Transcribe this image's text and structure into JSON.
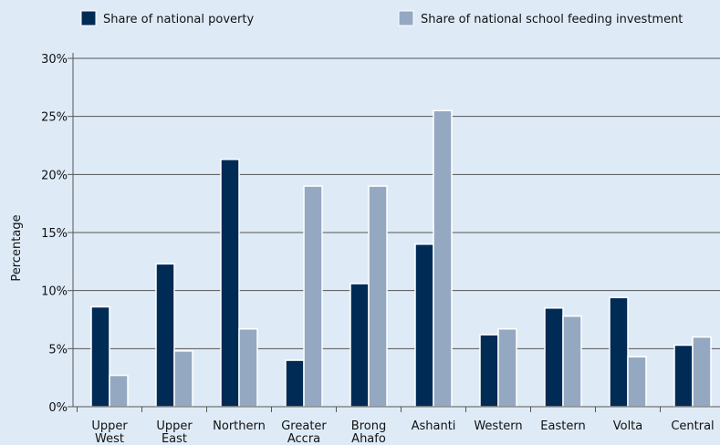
{
  "chart_data": {
    "type": "bar",
    "title": "",
    "xlabel": "",
    "ylabel": "Percentage",
    "ylim": [
      0,
      30
    ],
    "yticks": [
      0,
      5,
      10,
      15,
      20,
      25,
      30
    ],
    "ytick_labels": [
      "0%",
      "5%",
      "10%",
      "15%",
      "20%",
      "25%",
      "30%"
    ],
    "grid": true,
    "legend_position": "top",
    "categories": [
      [
        "Upper",
        "West"
      ],
      [
        "Upper",
        "East"
      ],
      [
        "Northern"
      ],
      [
        "Greater",
        "Accra"
      ],
      [
        "Brong",
        "Ahafo"
      ],
      [
        "Ashanti"
      ],
      [
        "Western"
      ],
      [
        "Eastern"
      ],
      [
        "Volta"
      ],
      [
        "Central"
      ]
    ],
    "series": [
      {
        "name": "Share of national poverty",
        "color": "#002b55",
        "values": [
          8.6,
          12.3,
          21.3,
          4.0,
          10.6,
          14.0,
          6.2,
          8.5,
          9.4,
          5.3
        ]
      },
      {
        "name": "Share of national school feeding investment",
        "color": "#94a8c2",
        "values": [
          2.7,
          4.8,
          6.7,
          19.0,
          19.0,
          25.5,
          6.7,
          7.8,
          4.3,
          6.0
        ]
      }
    ]
  }
}
